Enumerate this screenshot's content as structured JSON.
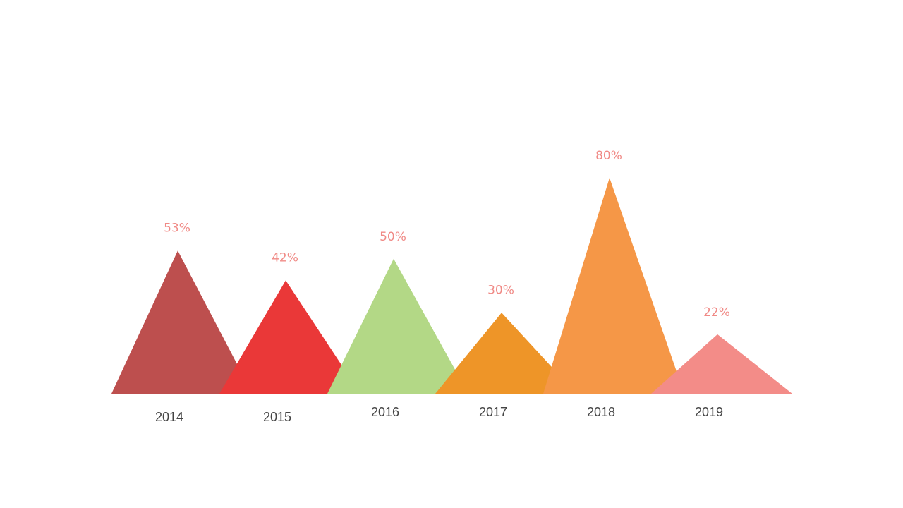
{
  "chart_data": {
    "type": "bar",
    "style": "triangle",
    "categories": [
      "2014",
      "2015",
      "2016",
      "2017",
      "2018",
      "2019"
    ],
    "values": [
      53,
      42,
      50,
      30,
      80,
      22
    ],
    "value_labels": [
      "53%",
      "42%",
      "50%",
      "30%",
      "80%",
      "22%"
    ],
    "colors": [
      "#bd4f4e",
      "#ea3838",
      "#b3d886",
      "#ee9528",
      "#f59747",
      "#f38c88"
    ],
    "value_label_color": "#f08a86",
    "category_label_color": "#444444",
    "ylim": [
      0,
      80
    ],
    "grid": false,
    "legend": "none",
    "title": "",
    "xlabel": "",
    "ylabel": ""
  }
}
